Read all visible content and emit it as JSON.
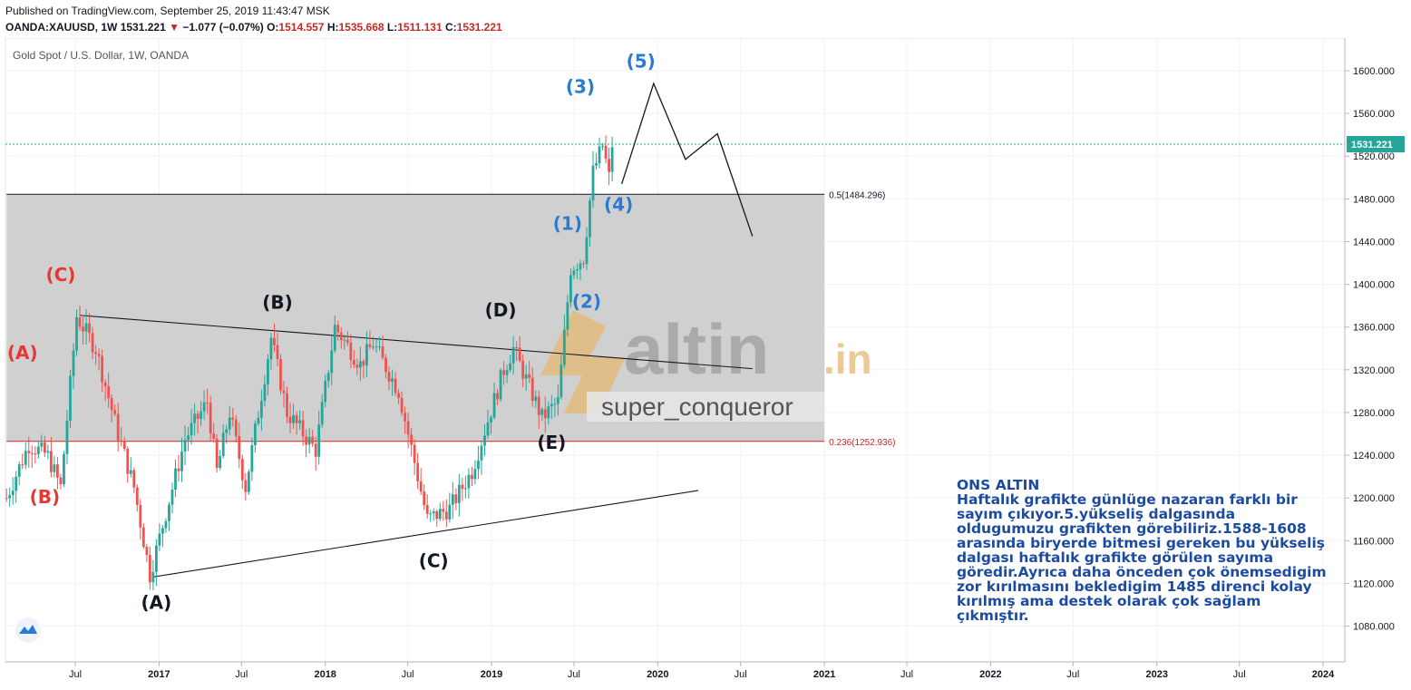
{
  "header": {
    "published": "Published on TradingView.com, September 25, 2019 11:43:47 MSK",
    "symbol": "OANDA:XAUUSD, 1W",
    "last": "1531.221",
    "change": "−1.077 (−0.07%)",
    "open_label": "O:",
    "open": "1514.557",
    "high_label": "H:",
    "high": "1535.668",
    "low_label": "L:",
    "low": "1511.131",
    "close_label": "C:",
    "close": "1531.221"
  },
  "chart_title": "Gold Spot / U.S. Dollar, 1W, OANDA",
  "watermark": {
    "logo_text": "altin",
    "logo_suffix": ".in",
    "author": "super_conqueror"
  },
  "note": {
    "title": "ONS ALTIN",
    "body": "Haftalık grafikte günlüge nazaran farklı bir sayım çıkıyor.5.yükseliş dalgasında oldugumuzu grafikten görebiliriz.1588-1608 arasında biryerde bitmesi gereken bu yükseliş dalgası haftalık grafikte görülen sayıma göredir.Ayrıca daha önceden çok önemsedigim zor kırılmasını bekledigim 1485 direnci kolay kırılmış ama destek olarak çok sağlam çıkmıştır."
  },
  "colors": {
    "up": "#26a69a",
    "down": "#ef5350",
    "wave_red": "#e53935",
    "wave_blue": "#2a7bd4",
    "wave_black": "#131722",
    "fib_zone": "#c8c8c8",
    "price_tag": "#26a69a"
  },
  "chart_data": {
    "type": "candlestick",
    "title": "Gold Spot / U.S. Dollar, 1W, OANDA",
    "x_ticks": [
      "Jul",
      "2017",
      "Jul",
      "2018",
      "Jul",
      "2019",
      "Jul",
      "2020",
      "Jul",
      "2021",
      "Jul",
      "2022",
      "Jul",
      "2023",
      "Jul",
      "2024"
    ],
    "x_tick_dates": [
      "2016-07-01",
      "2017-01-01",
      "2017-07-01",
      "2018-01-01",
      "2018-07-01",
      "2019-01-01",
      "2019-07-01",
      "2020-01-01",
      "2020-07-01",
      "2021-01-01",
      "2021-07-01",
      "2022-01-01",
      "2022-07-01",
      "2023-01-01",
      "2023-07-01",
      "2024-01-01"
    ],
    "y_ticks": [
      "1080.000",
      "1120.000",
      "1160.000",
      "1200.000",
      "1240.000",
      "1280.000",
      "1320.000",
      "1360.000",
      "1400.000",
      "1440.000",
      "1480.000",
      "1520.000",
      "1560.000",
      "1600.000"
    ],
    "ylim": [
      1048,
      1630
    ],
    "last_price": "1531.221",
    "fib_levels": [
      {
        "label": "0.5(1484.296)",
        "value": 1484.296,
        "color": "#131722"
      },
      {
        "label": "0.236(1252.936)",
        "value": 1252.936,
        "color": "#c62828"
      }
    ],
    "fib_zone": {
      "from": "2016-02-01",
      "to": "2021-01-01",
      "top": 1484.296,
      "bottom": 1252.936
    },
    "series": [
      {
        "date": "2016-02-01",
        "price": 1200
      },
      {
        "date": "2016-03-21",
        "price": 1250
      },
      {
        "date": "2016-05-01",
        "price": 1240
      },
      {
        "date": "2016-05-30",
        "price": 1210
      },
      {
        "date": "2016-07-04",
        "price": 1370
      },
      {
        "date": "2016-08-15",
        "price": 1340
      },
      {
        "date": "2016-10-03",
        "price": 1260
      },
      {
        "date": "2016-11-07",
        "price": 1210
      },
      {
        "date": "2016-12-12",
        "price": 1128
      },
      {
        "date": "2017-02-27",
        "price": 1255
      },
      {
        "date": "2017-04-17",
        "price": 1290
      },
      {
        "date": "2017-05-08",
        "price": 1225
      },
      {
        "date": "2017-06-05",
        "price": 1280
      },
      {
        "date": "2017-07-10",
        "price": 1210
      },
      {
        "date": "2017-09-04",
        "price": 1350
      },
      {
        "date": "2017-10-09",
        "price": 1280
      },
      {
        "date": "2017-12-11",
        "price": 1245
      },
      {
        "date": "2018-01-22",
        "price": 1360
      },
      {
        "date": "2018-03-19",
        "price": 1325
      },
      {
        "date": "2018-04-16",
        "price": 1345
      },
      {
        "date": "2018-06-11",
        "price": 1300
      },
      {
        "date": "2018-08-13",
        "price": 1180
      },
      {
        "date": "2018-10-01",
        "price": 1190
      },
      {
        "date": "2018-11-19",
        "price": 1225
      },
      {
        "date": "2019-01-28",
        "price": 1320
      },
      {
        "date": "2019-02-18",
        "price": 1340
      },
      {
        "date": "2019-04-22",
        "price": 1275
      },
      {
        "date": "2019-05-27",
        "price": 1290
      },
      {
        "date": "2019-06-24",
        "price": 1415
      },
      {
        "date": "2019-07-22",
        "price": 1425
      },
      {
        "date": "2019-08-12",
        "price": 1505
      },
      {
        "date": "2019-09-02",
        "price": 1530
      },
      {
        "date": "2019-09-16",
        "price": 1500
      },
      {
        "date": "2019-09-23",
        "price": 1531
      }
    ],
    "projection": [
      {
        "date": "2019-10-14",
        "price": 1494
      },
      {
        "date": "2019-12-23",
        "price": 1588
      },
      {
        "date": "2020-03-02",
        "price": 1517
      },
      {
        "date": "2020-05-11",
        "price": 1541
      },
      {
        "date": "2020-07-27",
        "price": 1445
      }
    ],
    "trendlines": [
      {
        "from": {
          "date": "2016-07-11",
          "price": 1371
        },
        "to": {
          "date": "2020-07-27",
          "price": 1321
        }
      },
      {
        "from": {
          "date": "2016-12-19",
          "price": 1126
        },
        "to": {
          "date": "2020-03-30",
          "price": 1207
        }
      }
    ],
    "wave_labels": [
      {
        "text": "(A)",
        "date": "2016-03-07",
        "price": 1330,
        "color": "#e53935"
      },
      {
        "text": "(B)",
        "date": "2016-04-25",
        "price": 1195,
        "color": "#e53935"
      },
      {
        "text": "(C)",
        "date": "2016-05-30",
        "price": 1403,
        "color": "#e53935"
      },
      {
        "text": "(A)",
        "date": "2016-12-26",
        "price": 1096,
        "color": "#131722"
      },
      {
        "text": "(B)",
        "date": "2017-09-18",
        "price": 1377,
        "color": "#131722"
      },
      {
        "text": "(C)",
        "date": "2018-08-27",
        "price": 1135,
        "color": "#131722"
      },
      {
        "text": "(D)",
        "date": "2019-01-21",
        "price": 1370,
        "color": "#131722"
      },
      {
        "text": "(E)",
        "date": "2019-05-13",
        "price": 1246,
        "color": "#131722"
      },
      {
        "text": "(1)",
        "date": "2019-06-17",
        "price": 1451,
        "color": "#2a7bd4"
      },
      {
        "text": "(2)",
        "date": "2019-07-29",
        "price": 1378,
        "color": "#2a7bd4"
      },
      {
        "text": "(3)",
        "date": "2019-07-15",
        "price": 1579,
        "color": "#2a7bd4"
      },
      {
        "text": "(4)",
        "date": "2019-10-07",
        "price": 1469,
        "color": "#2a7bd4"
      },
      {
        "text": "(5)",
        "date": "2019-11-25",
        "price": 1603,
        "color": "#2a7bd4"
      }
    ]
  }
}
